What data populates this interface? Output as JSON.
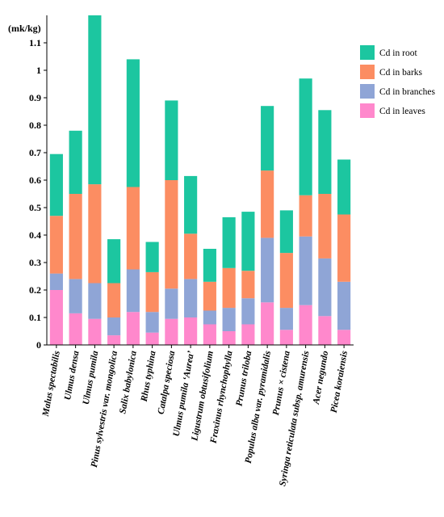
{
  "chart_data": {
    "type": "bar",
    "stacked": true,
    "title": "",
    "ylabel": "(mk/kg)",
    "xlabel": "",
    "ylim": [
      0,
      1.2
    ],
    "yticks": [
      0,
      0.1,
      0.2,
      0.3,
      0.4,
      0.5,
      0.6,
      0.7,
      0.8,
      0.9,
      1,
      1.1
    ],
    "ytick_labels": [
      "0",
      "0.1",
      "0.2",
      "0.3",
      "0.4",
      "0.5",
      "0.6",
      "0.7",
      "0.8",
      "0.9",
      "1",
      "1.1"
    ],
    "grid": false,
    "legend_position": "top-right",
    "categories": [
      "Malus spectabilis",
      "Ulmus densa",
      "Ulmus pumila",
      "Pinus sylvestris var. mongolica",
      "Salix babylonica",
      "Rhus typhina",
      "Catalpa speciosa",
      "Ulmus pumila ‘Aurea’",
      "Ligustrum obtusifolium",
      "Fraxinus rhynchophylla",
      "Prunus triloba",
      "Populus alba var. pyramidalis",
      "Prunus × cistena",
      "Syringa reticulata subsp. amurensis",
      "Acer negundo",
      "Picea koraiensis"
    ],
    "series": [
      {
        "name": "Cd in leaves",
        "color": "#FF88CC",
        "values": [
          0.2,
          0.115,
          0.095,
          0.035,
          0.12,
          0.045,
          0.095,
          0.1,
          0.075,
          0.05,
          0.075,
          0.155,
          0.055,
          0.145,
          0.105,
          0.055
        ]
      },
      {
        "name": "Cd in branches",
        "color": "#8FA5D6",
        "values": [
          0.06,
          0.125,
          0.13,
          0.065,
          0.155,
          0.075,
          0.11,
          0.14,
          0.05,
          0.085,
          0.095,
          0.235,
          0.08,
          0.25,
          0.21,
          0.175
        ]
      },
      {
        "name": "Cd in barks",
        "color": "#FC8D62",
        "values": [
          0.21,
          0.31,
          0.36,
          0.125,
          0.3,
          0.145,
          0.395,
          0.165,
          0.105,
          0.145,
          0.1,
          0.245,
          0.2,
          0.15,
          0.235,
          0.245
        ]
      },
      {
        "name": "Cd in root",
        "color": "#1CC6A0",
        "values": [
          0.225,
          0.23,
          0.615,
          0.16,
          0.465,
          0.11,
          0.29,
          0.21,
          0.12,
          0.185,
          0.215,
          0.235,
          0.155,
          0.425,
          0.305,
          0.2
        ]
      }
    ]
  }
}
